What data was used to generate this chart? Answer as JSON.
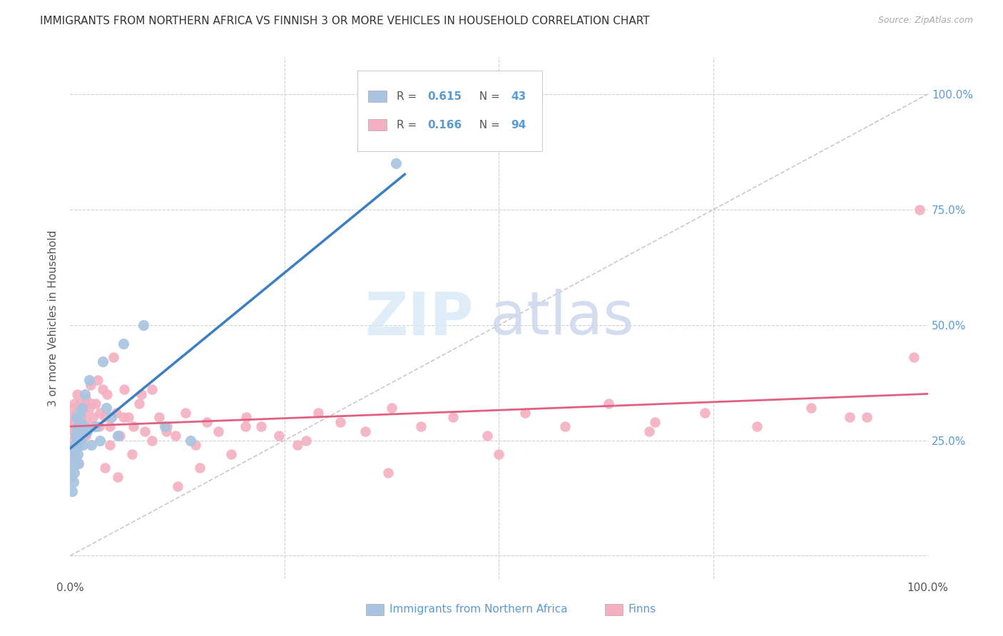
{
  "title": "IMMIGRANTS FROM NORTHERN AFRICA VS FINNISH 3 OR MORE VEHICLES IN HOUSEHOLD CORRELATION CHART",
  "source": "Source: ZipAtlas.com",
  "ylabel": "3 or more Vehicles in Household",
  "legend_label1": "Immigrants from Northern Africa",
  "legend_label2": "Finns",
  "R1": 0.615,
  "N1": 43,
  "R2": 0.166,
  "N2": 94,
  "color_blue": "#a8c4e0",
  "color_blue_line": "#3a7fc1",
  "color_pink": "#f4b0c0",
  "color_pink_line": "#e06080",
  "color_diag": "#c0c0c0",
  "blue_x": [
    0.001,
    0.002,
    0.002,
    0.003,
    0.003,
    0.004,
    0.004,
    0.005,
    0.005,
    0.006,
    0.006,
    0.007,
    0.007,
    0.007,
    0.008,
    0.008,
    0.009,
    0.009,
    0.01,
    0.01,
    0.011,
    0.011,
    0.012,
    0.012,
    0.013,
    0.014,
    0.015,
    0.016,
    0.017,
    0.02,
    0.022,
    0.025,
    0.03,
    0.035,
    0.038,
    0.042,
    0.048,
    0.055,
    0.062,
    0.085,
    0.11,
    0.14,
    0.38
  ],
  "blue_y": [
    0.17,
    0.14,
    0.19,
    0.2,
    0.22,
    0.16,
    0.23,
    0.18,
    0.24,
    0.21,
    0.26,
    0.23,
    0.27,
    0.3,
    0.2,
    0.25,
    0.22,
    0.28,
    0.2,
    0.24,
    0.27,
    0.31,
    0.25,
    0.29,
    0.26,
    0.32,
    0.24,
    0.28,
    0.35,
    0.27,
    0.38,
    0.24,
    0.28,
    0.25,
    0.42,
    0.32,
    0.3,
    0.26,
    0.46,
    0.5,
    0.28,
    0.25,
    0.85
  ],
  "pink_x": [
    0.001,
    0.002,
    0.003,
    0.003,
    0.004,
    0.005,
    0.005,
    0.006,
    0.007,
    0.007,
    0.008,
    0.009,
    0.01,
    0.011,
    0.012,
    0.013,
    0.014,
    0.015,
    0.016,
    0.017,
    0.018,
    0.019,
    0.02,
    0.022,
    0.024,
    0.026,
    0.028,
    0.03,
    0.032,
    0.035,
    0.038,
    0.04,
    0.043,
    0.046,
    0.05,
    0.054,
    0.058,
    0.063,
    0.068,
    0.074,
    0.08,
    0.087,
    0.095,
    0.104,
    0.113,
    0.123,
    0.134,
    0.146,
    0.159,
    0.173,
    0.188,
    0.205,
    0.223,
    0.243,
    0.265,
    0.289,
    0.315,
    0.344,
    0.375,
    0.409,
    0.446,
    0.486,
    0.53,
    0.577,
    0.628,
    0.682,
    0.74,
    0.801,
    0.864,
    0.929,
    0.984,
    0.005,
    0.008,
    0.012,
    0.018,
    0.025,
    0.034,
    0.046,
    0.062,
    0.083,
    0.112,
    0.151,
    0.204,
    0.275,
    0.371,
    0.5,
    0.675,
    0.909,
    0.04,
    0.055,
    0.072,
    0.095,
    0.125,
    0.99
  ],
  "pink_y": [
    0.28,
    0.32,
    0.27,
    0.3,
    0.25,
    0.29,
    0.33,
    0.26,
    0.31,
    0.28,
    0.24,
    0.3,
    0.27,
    0.33,
    0.29,
    0.25,
    0.32,
    0.28,
    0.31,
    0.26,
    0.34,
    0.29,
    0.27,
    0.32,
    0.37,
    0.3,
    0.28,
    0.33,
    0.38,
    0.31,
    0.36,
    0.3,
    0.35,
    0.28,
    0.43,
    0.31,
    0.26,
    0.36,
    0.3,
    0.28,
    0.33,
    0.27,
    0.36,
    0.3,
    0.28,
    0.26,
    0.31,
    0.24,
    0.29,
    0.27,
    0.22,
    0.3,
    0.28,
    0.26,
    0.24,
    0.31,
    0.29,
    0.27,
    0.32,
    0.28,
    0.3,
    0.26,
    0.31,
    0.28,
    0.33,
    0.29,
    0.31,
    0.28,
    0.32,
    0.3,
    0.43,
    0.22,
    0.35,
    0.3,
    0.26,
    0.33,
    0.28,
    0.24,
    0.3,
    0.35,
    0.27,
    0.19,
    0.28,
    0.25,
    0.18,
    0.22,
    0.27,
    0.3,
    0.19,
    0.17,
    0.22,
    0.25,
    0.15,
    0.75
  ]
}
